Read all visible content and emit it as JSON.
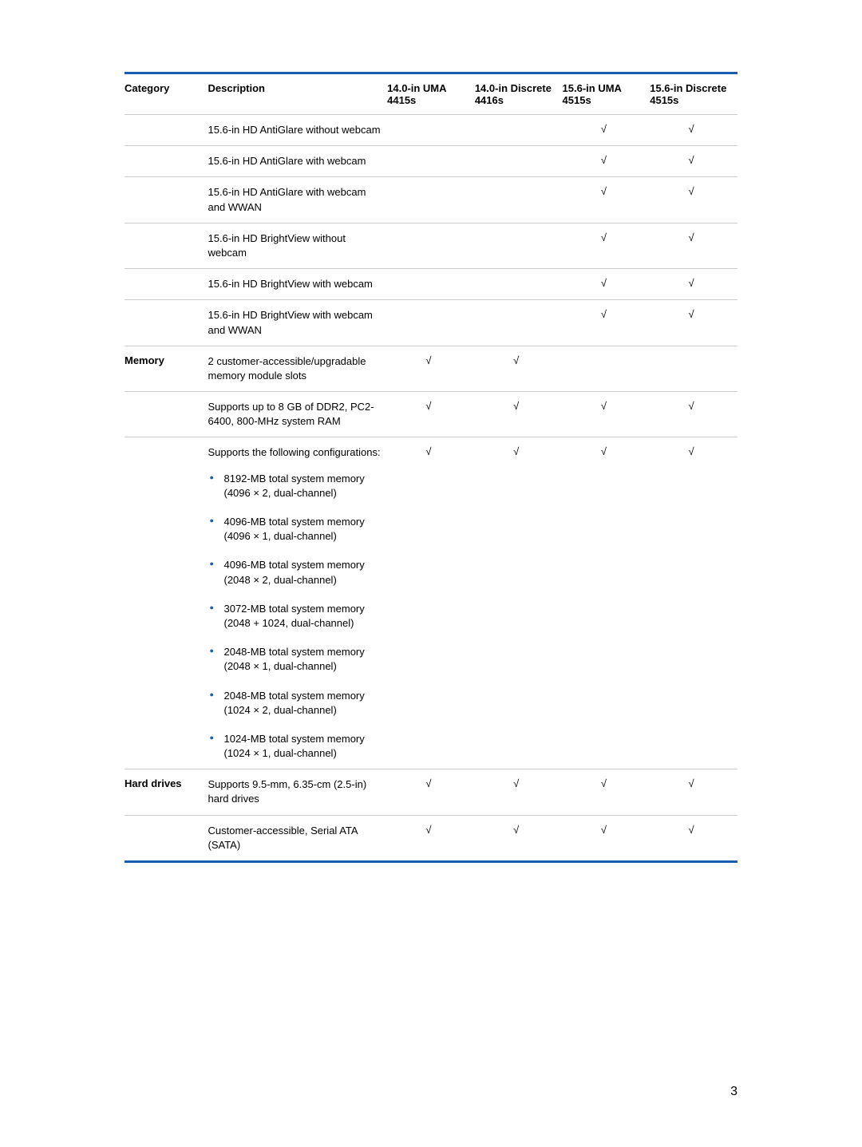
{
  "colors": {
    "border_blue": "#1a5db4",
    "divider_gray": "#cccccc",
    "bullet_blue": "#1a5db4",
    "text": "#000000",
    "background": "#ffffff"
  },
  "typography": {
    "body_font_size": 13,
    "header_font_weight": "bold",
    "font_family": "Arial, Helvetica, sans-serif"
  },
  "check_mark": "√",
  "headers": {
    "category": "Category",
    "description": "Description",
    "col1": "14.0-in UMA 4415s",
    "col2": "14.0-in Discrete 4416s",
    "col3": "15.6-in UMA 4515s",
    "col4": "15.6-in Discrete 4515s"
  },
  "rows": [
    {
      "category": "",
      "description": "15.6-in HD AntiGlare without webcam",
      "c1": false,
      "c2": false,
      "c3": true,
      "c4": true
    },
    {
      "category": "",
      "description": "15.6-in HD AntiGlare with webcam",
      "c1": false,
      "c2": false,
      "c3": true,
      "c4": true
    },
    {
      "category": "",
      "description": "15.6-in HD AntiGlare with webcam and WWAN",
      "c1": false,
      "c2": false,
      "c3": true,
      "c4": true
    },
    {
      "category": "",
      "description": "15.6-in HD BrightView without webcam",
      "c1": false,
      "c2": false,
      "c3": true,
      "c4": true
    },
    {
      "category": "",
      "description": "15.6-in HD BrightView with webcam",
      "c1": false,
      "c2": false,
      "c3": true,
      "c4": true
    },
    {
      "category": "",
      "description": "15.6-in HD BrightView with webcam and WWAN",
      "c1": false,
      "c2": false,
      "c3": true,
      "c4": true
    },
    {
      "category": "Memory",
      "description": "2 customer-accessible/upgradable memory module slots",
      "c1": true,
      "c2": true,
      "c3": false,
      "c4": false
    },
    {
      "category": "",
      "description": "Supports up to 8 GB of DDR2, PC2-6400, 800-MHz system RAM",
      "c1": true,
      "c2": true,
      "c3": true,
      "c4": true
    },
    {
      "category": "",
      "description": "Supports the following configurations:",
      "c1": true,
      "c2": true,
      "c3": true,
      "c4": true,
      "bullets": [
        "8192-MB total system memory (4096 × 2, dual-channel)",
        "4096-MB total system memory (4096 × 1, dual-channel)",
        "4096-MB total system memory (2048 × 2, dual-channel)",
        "3072-MB total system memory (2048 + 1024, dual-channel)",
        "2048-MB total system memory (2048 × 1, dual-channel)",
        "2048-MB total system memory (1024 × 2, dual-channel)",
        "1024-MB total system memory (1024 × 1, dual-channel)"
      ]
    },
    {
      "category": "Hard drives",
      "description": "Supports 9.5-mm, 6.35-cm (2.5-in) hard drives",
      "c1": true,
      "c2": true,
      "c3": true,
      "c4": true
    },
    {
      "category": "",
      "description": "Customer-accessible, Serial ATA (SATA)",
      "c1": true,
      "c2": true,
      "c3": true,
      "c4": true
    }
  ],
  "page_number": "3"
}
